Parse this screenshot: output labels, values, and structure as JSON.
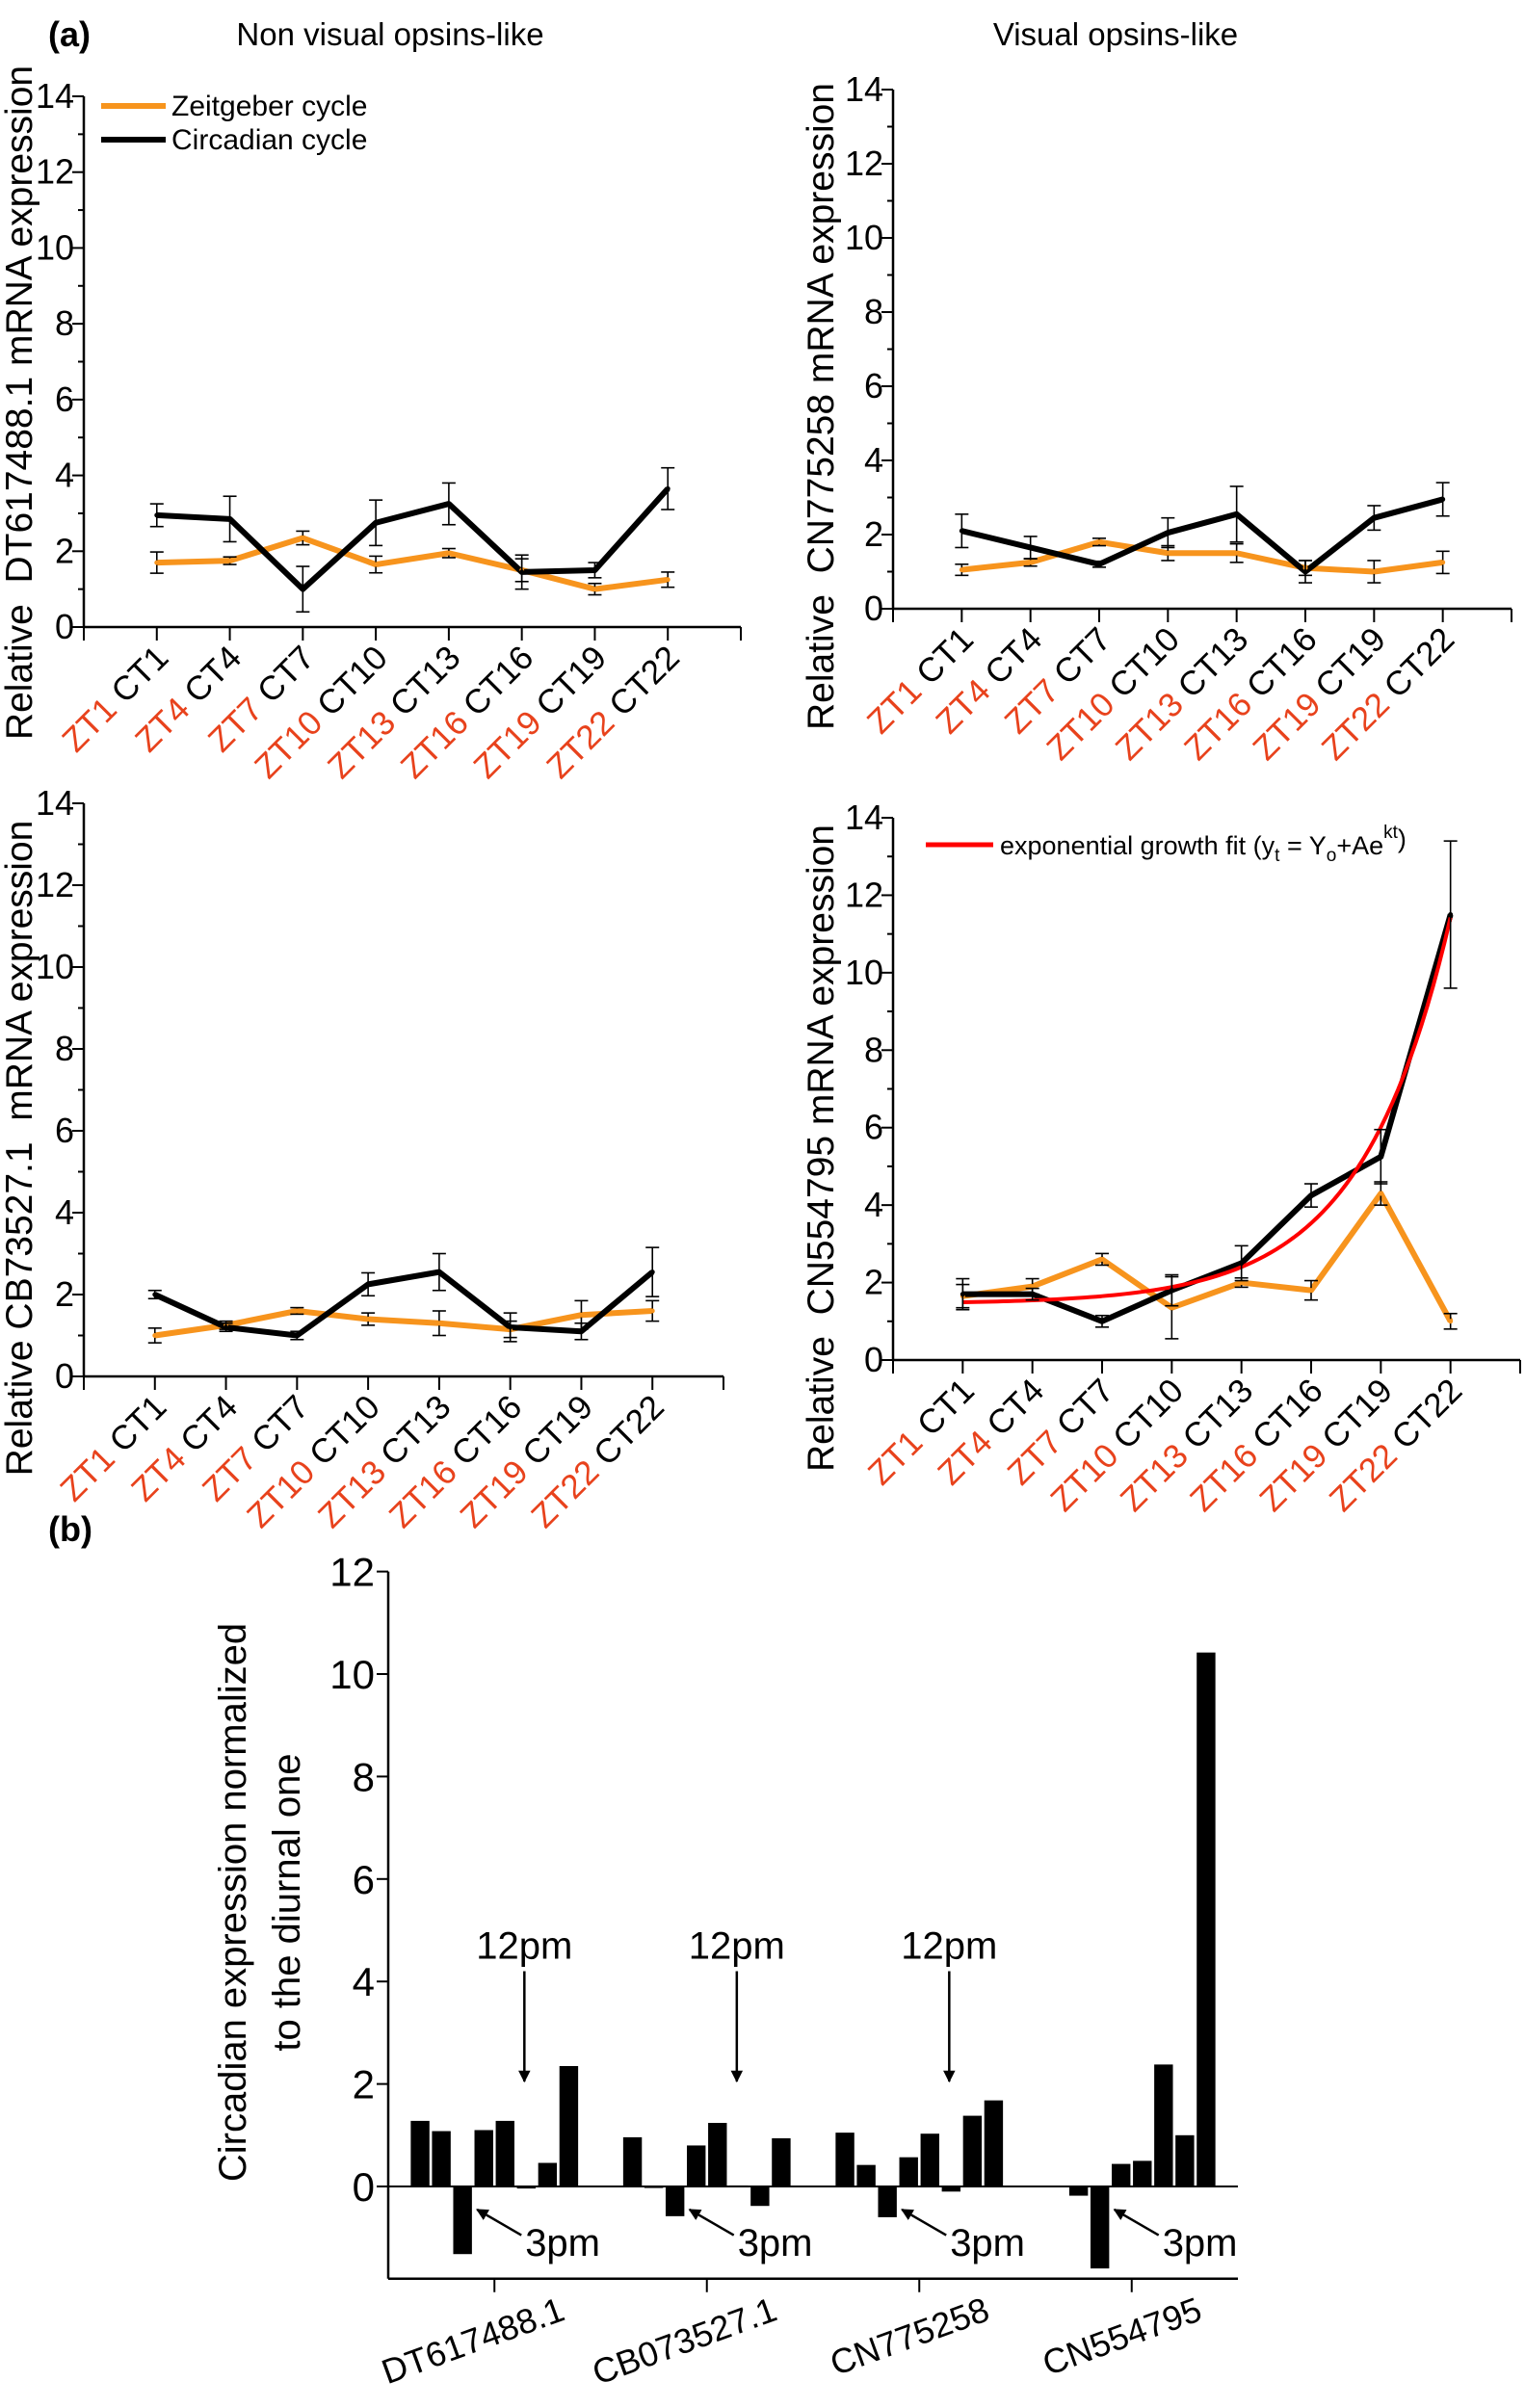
{
  "figure": {
    "panel_a_label": "(a)",
    "panel_b_label": "(b)",
    "column_titles": [
      "Non visual opsins-like",
      "Visual opsins-like"
    ]
  },
  "colors": {
    "zeitgeber": "#f7941d",
    "circadian": "#000000",
    "fit": "#ff0000",
    "zt_label": "#e8421c",
    "bars": "#000000"
  },
  "legend": {
    "zeitgeber": "Zeitgeber cycle",
    "circadian": "Circadian cycle",
    "fit": {
      "pre": "exponential growth fit (y",
      "sub1": "t",
      "mid": " = Y",
      "sub2": "o",
      "mid2": "+Ae",
      "sup": "kt",
      "post": ")"
    }
  },
  "chart_data": [
    {
      "type": "line",
      "ylabel": "Relative  DT617488.1 mRNA expression",
      "zt_labels": [
        "ZT1",
        "ZT4",
        "ZT7",
        "ZT10",
        "ZT13",
        "ZT16",
        "ZT19",
        "ZT22"
      ],
      "ct_labels": [
        "CT1",
        "CT4",
        "CT7",
        "CT10",
        "CT13",
        "CT16",
        "CT19",
        "CT22"
      ],
      "ylim": [
        0,
        14
      ],
      "yticks": [
        0,
        2,
        4,
        6,
        8,
        10,
        12,
        14
      ],
      "legend": "top-left",
      "series": [
        {
          "name": "Zeitgeber cycle",
          "values": [
            1.7,
            1.75,
            2.35,
            1.65,
            1.95,
            1.5,
            1.0,
            1.25
          ],
          "errors": [
            0.28,
            0.1,
            0.18,
            0.22,
            0.12,
            0.3,
            0.15,
            0.2
          ]
        },
        {
          "name": "Circadian cycle",
          "values": [
            2.95,
            2.85,
            1.0,
            2.75,
            3.25,
            1.45,
            1.5,
            3.65
          ],
          "errors": [
            0.3,
            0.6,
            0.6,
            0.6,
            0.55,
            0.45,
            0.2,
            0.55
          ]
        }
      ]
    },
    {
      "type": "line",
      "ylabel": "Relative  CN775258 mRNA expression",
      "zt_labels": [
        "ZT1",
        "ZT4",
        "ZT7",
        "ZT10",
        "ZT13",
        "ZT16",
        "ZT19",
        "ZT22"
      ],
      "ct_labels": [
        "CT1",
        "CT4",
        "CT7",
        "CT10",
        "CT13",
        "CT16",
        "CT19",
        "CT22"
      ],
      "ylim": [
        0,
        14
      ],
      "yticks": [
        0,
        2,
        4,
        6,
        8,
        10,
        12,
        14
      ],
      "series": [
        {
          "name": "Zeitgeber cycle",
          "values": [
            1.05,
            1.25,
            1.8,
            1.5,
            1.5,
            1.1,
            1.0,
            1.25
          ],
          "errors": [
            0.15,
            0.1,
            0.1,
            0.2,
            0.25,
            0.2,
            0.3,
            0.3
          ]
        },
        {
          "name": "Circadian cycle",
          "values": [
            2.1,
            1.65,
            1.2,
            2.05,
            2.55,
            1.0,
            2.45,
            2.95
          ],
          "errors": [
            0.45,
            0.3,
            0.08,
            0.4,
            0.75,
            0.3,
            0.33,
            0.45
          ]
        }
      ]
    },
    {
      "type": "line",
      "ylabel": "Relative CB73527.1  mRNA expression",
      "zt_labels": [
        "ZT1",
        "ZT4",
        "ZT7",
        "ZT10",
        "ZT13",
        "ZT16",
        "ZT19",
        "ZT22"
      ],
      "ct_labels": [
        "CT1",
        "CT4",
        "CT7",
        "CT10",
        "CT13",
        "CT16",
        "CT19",
        "CT22"
      ],
      "ylim": [
        0,
        14
      ],
      "yticks": [
        0,
        2,
        4,
        6,
        8,
        10,
        12,
        14
      ],
      "series": [
        {
          "name": "Zeitgeber cycle",
          "values": [
            1.0,
            1.25,
            1.6,
            1.4,
            1.3,
            1.15,
            1.5,
            1.6
          ],
          "errors": [
            0.18,
            0.1,
            0.08,
            0.15,
            0.3,
            0.2,
            0.35,
            0.25
          ]
        },
        {
          "name": "Circadian cycle",
          "values": [
            2.0,
            1.2,
            1.0,
            2.25,
            2.55,
            1.2,
            1.1,
            2.55
          ],
          "errors": [
            0.1,
            0.1,
            0.1,
            0.28,
            0.45,
            0.35,
            0.2,
            0.6
          ]
        }
      ]
    },
    {
      "type": "line",
      "ylabel": "Relative  CN554795 mRNA expression",
      "zt_labels": [
        "ZT1",
        "ZT4",
        "ZT7",
        "ZT10",
        "ZT13",
        "ZT16",
        "ZT19",
        "ZT22"
      ],
      "ct_labels": [
        "CT1",
        "CT4",
        "CT7",
        "CT10",
        "CT13",
        "CT16",
        "CT19",
        "CT22"
      ],
      "ylim": [
        0,
        14
      ],
      "yticks": [
        0,
        2,
        4,
        6,
        8,
        10,
        12,
        14
      ],
      "legend": "top",
      "series": [
        {
          "name": "Zeitgeber cycle",
          "values": [
            1.65,
            1.9,
            2.6,
            1.35,
            2.0,
            1.8,
            4.3,
            1.0
          ],
          "errors": [
            0.3,
            0.2,
            0.15,
            0.8,
            0.12,
            0.25,
            0.3,
            0.2
          ]
        },
        {
          "name": "Circadian cycle",
          "values": [
            1.7,
            1.7,
            1.0,
            1.8,
            2.5,
            4.25,
            5.25,
            11.5
          ],
          "errors": [
            0.4,
            0.15,
            0.15,
            0.4,
            0.45,
            0.3,
            0.7,
            1.9
          ]
        }
      ],
      "fit": {
        "name": "exponential growth fit (yt = Yo+Aekt)",
        "model": "exponential growth"
      }
    },
    {
      "type": "bar",
      "ylabel_lines": [
        "Circadian expression normalized",
        "to the diurnal one"
      ],
      "categories": [
        "DT617488.1",
        "CB073527.1",
        "CN775258",
        "CN554795"
      ],
      "ylim": [
        -1.8,
        12
      ],
      "yticks": [
        0,
        2,
        4,
        6,
        8,
        10,
        12
      ],
      "groups": [
        [
          1.28,
          1.08,
          -1.32,
          1.1,
          1.28,
          -0.04,
          0.46,
          2.35
        ],
        [
          0.96,
          -0.03,
          -0.58,
          0.8,
          1.24,
          0.02,
          -0.38,
          0.94
        ],
        [
          1.05,
          0.42,
          -0.6,
          0.57,
          1.03,
          -0.1,
          1.38,
          1.68
        ],
        [
          0,
          -0.18,
          -1.6,
          0.44,
          0.5,
          2.38,
          1.0,
          10.42
        ]
      ],
      "annotations": [
        {
          "text": "12pm",
          "group": 0
        },
        {
          "text": "12pm",
          "group": 1
        },
        {
          "text": "12pm",
          "group": 2
        },
        {
          "text": "3pm",
          "group": 0
        },
        {
          "text": "3pm",
          "group": 1
        },
        {
          "text": "3pm",
          "group": 2
        },
        {
          "text": "3pm",
          "group": 3
        }
      ]
    }
  ]
}
